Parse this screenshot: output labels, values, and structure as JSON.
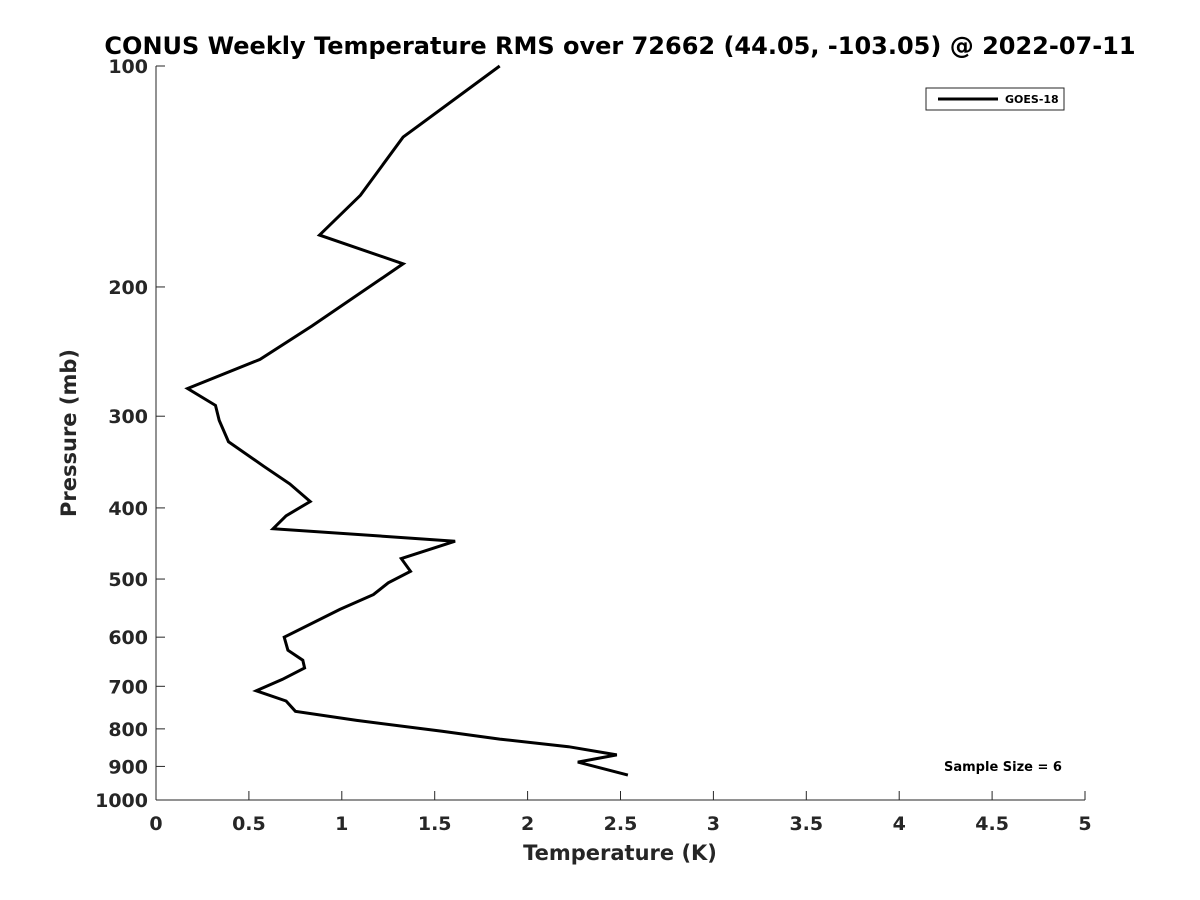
{
  "chart_data": {
    "type": "line",
    "title": "CONUS Weekly Temperature RMS over 72662 (44.05, -103.05) @ 2022-07-11",
    "xlabel": "Temperature (K)",
    "ylabel": "Pressure (mb)",
    "xlim": [
      0,
      5
    ],
    "ylim": [
      100,
      1000
    ],
    "y_scale": "log",
    "y_reversed": true,
    "x_ticks": [
      "0",
      "0.5",
      "1",
      "1.5",
      "2",
      "2.5",
      "3",
      "3.5",
      "4",
      "4.5",
      "5"
    ],
    "y_ticks": [
      "100",
      "200",
      "300",
      "400",
      "500",
      "600",
      "700",
      "800",
      "900",
      "1000"
    ],
    "grid": false,
    "legend_position": "top-right",
    "annotation": "Sample Size = 6",
    "series": [
      {
        "name": "GOES-18",
        "color": "#000000",
        "x": [
          1.85,
          1.33,
          1.1,
          0.88,
          1.33,
          0.84,
          0.56,
          0.17,
          0.32,
          0.34,
          0.39,
          0.58,
          0.72,
          0.83,
          0.7,
          0.63,
          1.61,
          1.32,
          1.37,
          1.25,
          1.17,
          0.99,
          0.69,
          0.71,
          0.79,
          0.8,
          0.68,
          0.54,
          0.7,
          0.75,
          1.08,
          1.54,
          1.85,
          2.22,
          2.48,
          2.27,
          2.54
        ],
        "y": [
          100,
          125,
          150,
          170,
          186,
          226,
          251,
          275,
          290,
          304,
          325,
          351,
          371,
          392,
          410,
          427,
          444,
          469,
          488,
          506,
          525,
          550,
          600,
          625,
          645,
          661,
          685,
          710,
          733,
          757,
          779,
          806,
          826,
          846,
          868,
          888,
          925
        ]
      }
    ]
  }
}
